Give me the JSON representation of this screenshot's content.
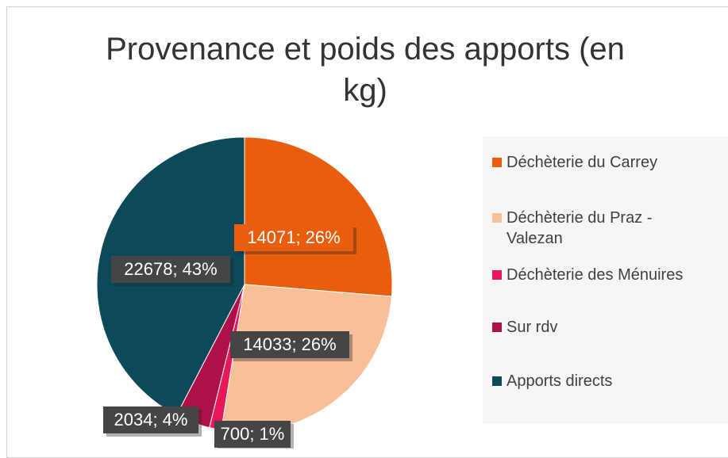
{
  "chart_data": {
    "type": "pie",
    "title": "Provenance et poids des apports (en kg)",
    "categories": [
      "Déchèterie du Carrey",
      "Déchèterie du Praz - Valezan",
      "Déchèterie des Ménuires",
      "Sur rdv",
      "Apports directs"
    ],
    "values": [
      14071,
      14033,
      700,
      2034,
      22678
    ],
    "value_labels": [
      "14071; 26%",
      "14033; 26%",
      "700; 1%",
      "2034; 4%",
      "22678; 43%"
    ],
    "colors": [
      "#e85e0e",
      "#f8bf98",
      "#e8175a",
      "#b01049",
      "#0c4a59"
    ],
    "legend": "right"
  }
}
